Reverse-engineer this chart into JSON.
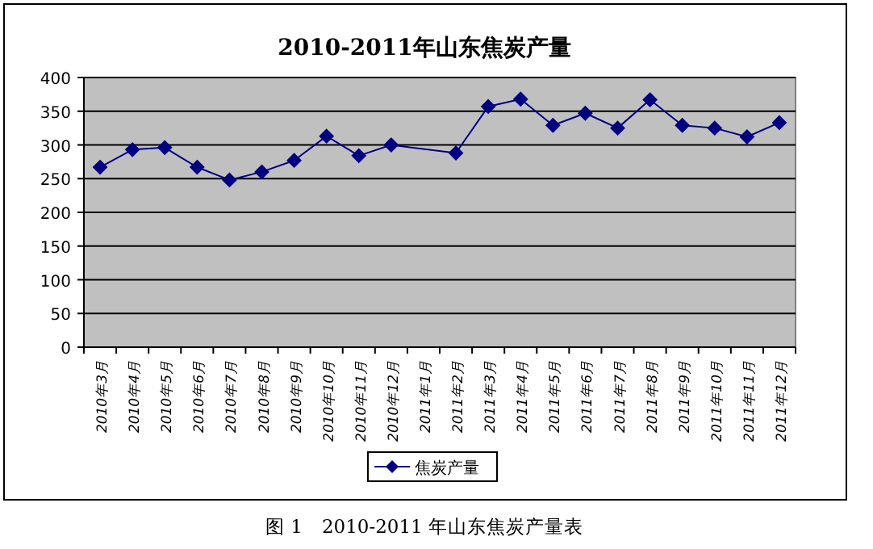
{
  "chart_data": {
    "type": "line",
    "title": "2010-2011年山东焦炭产量",
    "categories": [
      "2010年3月",
      "2010年4月",
      "2010年5月",
      "2010年6月",
      "2010年7月",
      "2010年8月",
      "2010年9月",
      "2010年10月",
      "2010年11月",
      "2010年12月",
      "2011年1月",
      "2011年2月",
      "2011年3月",
      "2011年4月",
      "2011年5月",
      "2011年6月",
      "2011年7月",
      "2011年8月",
      "2011年9月",
      "2011年10月",
      "2011年11月",
      "2011年12月"
    ],
    "series": [
      {
        "name": "焦炭产量",
        "color": "#000080",
        "values": [
          267,
          293,
          296,
          267,
          248,
          260,
          277,
          313,
          284,
          300,
          null,
          288,
          357,
          368,
          329,
          347,
          325,
          367,
          329,
          325,
          312,
          333
        ]
      }
    ],
    "ylim": [
      0,
      400
    ],
    "yticks": [
      0,
      50,
      100,
      150,
      200,
      250,
      300,
      350,
      400
    ],
    "grid": "y",
    "legend": "bottom",
    "marker": "diamond",
    "annotations": [
      "图 1　2010-2011 年山东焦炭产量表"
    ]
  }
}
